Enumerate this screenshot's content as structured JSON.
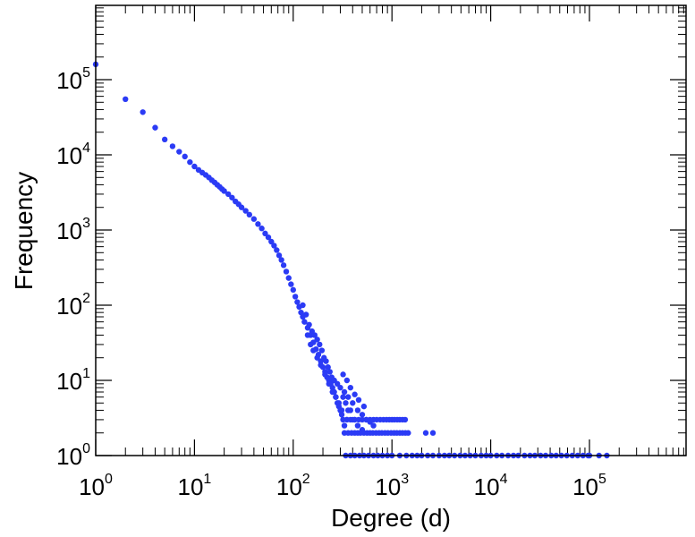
{
  "chart_data": {
    "type": "scatter",
    "title": "",
    "xlabel": "Degree (d)",
    "ylabel": "Frequency",
    "xscale": "log",
    "yscale": "log",
    "xlim": [
      1,
      1000000
    ],
    "ylim": [
      1,
      1000000
    ],
    "grid": false,
    "legend": "none",
    "point_color": "#2b3bf5",
    "x_ticks": [
      {
        "base": "10",
        "exp": "0",
        "value": 1
      },
      {
        "base": "10",
        "exp": "1",
        "value": 10
      },
      {
        "base": "10",
        "exp": "2",
        "value": 100
      },
      {
        "base": "10",
        "exp": "3",
        "value": 1000
      },
      {
        "base": "10",
        "exp": "4",
        "value": 10000
      },
      {
        "base": "10",
        "exp": "5",
        "value": 100000
      }
    ],
    "y_ticks": [
      {
        "base": "10",
        "exp": "0",
        "value": 1
      },
      {
        "base": "10",
        "exp": "1",
        "value": 10
      },
      {
        "base": "10",
        "exp": "2",
        "value": 100
      },
      {
        "base": "10",
        "exp": "3",
        "value": 1000
      },
      {
        "base": "10",
        "exp": "4",
        "value": 10000
      },
      {
        "base": "10",
        "exp": "5",
        "value": 100000
      }
    ],
    "series": [
      {
        "points": [
          [
            1,
            160000
          ],
          [
            2,
            55000
          ],
          [
            3,
            37000
          ],
          [
            4,
            23000
          ],
          [
            5,
            16000
          ],
          [
            6,
            13000
          ],
          [
            7,
            11000
          ],
          [
            8,
            9500
          ],
          [
            9,
            8000
          ],
          [
            10,
            7000
          ],
          [
            11,
            6300
          ],
          [
            12,
            5800
          ],
          [
            13,
            5400
          ],
          [
            14,
            5000
          ],
          [
            15,
            4600
          ],
          [
            16,
            4300
          ],
          [
            17,
            4000
          ],
          [
            18,
            3750
          ],
          [
            19,
            3500
          ],
          [
            20,
            3300
          ],
          [
            22,
            3000
          ],
          [
            24,
            2700
          ],
          [
            26,
            2400
          ],
          [
            28,
            2200
          ],
          [
            30,
            2000
          ],
          [
            33,
            1800
          ],
          [
            36,
            1600
          ],
          [
            40,
            1400
          ],
          [
            44,
            1200
          ],
          [
            48,
            1050
          ],
          [
            52,
            900
          ],
          [
            56,
            800
          ],
          [
            60,
            700
          ],
          [
            64,
            620
          ],
          [
            68,
            540
          ],
          [
            72,
            460
          ],
          [
            76,
            400
          ],
          [
            80,
            340
          ],
          [
            85,
            280
          ],
          [
            90,
            230
          ],
          [
            95,
            190
          ],
          [
            100,
            160
          ],
          [
            105,
            130
          ],
          [
            110,
            110
          ],
          [
            115,
            95
          ],
          [
            120,
            80
          ],
          [
            125,
            70
          ],
          [
            130,
            60
          ],
          [
            140,
            50
          ],
          [
            150,
            40
          ],
          [
            160,
            32
          ],
          [
            170,
            26
          ],
          [
            180,
            22
          ],
          [
            190,
            18
          ],
          [
            200,
            15
          ],
          [
            210,
            13
          ],
          [
            220,
            11
          ],
          [
            230,
            10
          ],
          [
            240,
            9
          ],
          [
            250,
            8
          ],
          [
            260,
            7
          ],
          [
            270,
            6
          ],
          [
            280,
            5
          ],
          [
            290,
            4.5
          ],
          [
            300,
            4
          ],
          [
            310,
            3.5
          ],
          [
            320,
            3
          ],
          [
            330,
            2.5
          ],
          [
            125,
            100
          ],
          [
            135,
            75
          ],
          [
            145,
            55
          ],
          [
            155,
            45
          ],
          [
            165,
            40
          ],
          [
            175,
            35
          ],
          [
            185,
            30
          ],
          [
            195,
            25
          ],
          [
            205,
            20
          ],
          [
            215,
            18
          ],
          [
            225,
            15
          ],
          [
            235,
            13
          ],
          [
            245,
            11
          ],
          [
            260,
            10
          ],
          [
            280,
            9
          ],
          [
            300,
            8
          ],
          [
            320,
            6
          ],
          [
            340,
            5
          ],
          [
            360,
            4
          ],
          [
            380,
            4
          ],
          [
            400,
            3
          ],
          [
            420,
            3
          ],
          [
            450,
            2.5
          ],
          [
            500,
            2.2
          ],
          [
            140,
            40
          ],
          [
            150,
            30
          ],
          [
            160,
            25
          ],
          [
            175,
            20
          ],
          [
            190,
            16
          ],
          [
            210,
            12
          ],
          [
            230,
            9
          ],
          [
            250,
            7
          ],
          [
            270,
            6
          ],
          [
            290,
            5
          ],
          [
            310,
            4
          ],
          [
            350,
            3
          ],
          [
            330,
            7
          ],
          [
            360,
            6
          ],
          [
            400,
            5
          ],
          [
            450,
            4
          ],
          [
            500,
            3.5
          ],
          [
            550,
            3
          ],
          [
            600,
            2.8
          ],
          [
            650,
            2.5
          ],
          [
            320,
            12
          ],
          [
            350,
            10
          ],
          [
            380,
            8
          ],
          [
            420,
            6.5
          ],
          [
            460,
            5.5
          ],
          [
            520,
            4.5
          ],
          [
            320,
            3
          ],
          [
            350,
            3
          ],
          [
            380,
            3
          ],
          [
            420,
            3
          ],
          [
            460,
            3
          ],
          [
            500,
            3
          ],
          [
            550,
            3
          ],
          [
            600,
            3
          ],
          [
            650,
            3
          ],
          [
            700,
            3
          ],
          [
            760,
            3
          ],
          [
            820,
            3
          ],
          [
            880,
            3
          ],
          [
            940,
            3
          ],
          [
            1000,
            3
          ],
          [
            1060,
            3
          ],
          [
            1130,
            3
          ],
          [
            1200,
            3
          ],
          [
            1280,
            3
          ],
          [
            1360,
            3
          ],
          [
            330,
            2
          ],
          [
            360,
            2
          ],
          [
            390,
            2
          ],
          [
            420,
            2
          ],
          [
            450,
            2
          ],
          [
            480,
            2
          ],
          [
            520,
            2
          ],
          [
            560,
            2
          ],
          [
            600,
            2
          ],
          [
            640,
            2
          ],
          [
            690,
            2
          ],
          [
            740,
            2
          ],
          [
            790,
            2
          ],
          [
            850,
            2
          ],
          [
            910,
            2
          ],
          [
            980,
            2
          ],
          [
            1050,
            2
          ],
          [
            1120,
            2
          ],
          [
            1200,
            2
          ],
          [
            1280,
            2
          ],
          [
            1370,
            2
          ],
          [
            1460,
            2
          ],
          [
            2200,
            2
          ],
          [
            2600,
            2
          ],
          [
            340,
            1
          ],
          [
            380,
            1
          ],
          [
            420,
            1
          ],
          [
            470,
            1
          ],
          [
            520,
            1
          ],
          [
            580,
            1
          ],
          [
            650,
            1
          ],
          [
            720,
            1
          ],
          [
            800,
            1
          ],
          [
            900,
            1
          ],
          [
            1000,
            1
          ],
          [
            1200,
            1
          ],
          [
            1400,
            1
          ],
          [
            1600,
            1
          ],
          [
            1800,
            1
          ],
          [
            2000,
            1
          ],
          [
            2300,
            1
          ],
          [
            2600,
            1
          ],
          [
            3000,
            1
          ],
          [
            3400,
            1
          ],
          [
            3800,
            1
          ],
          [
            4300,
            1
          ],
          [
            4900,
            1
          ],
          [
            5500,
            1
          ],
          [
            6200,
            1
          ],
          [
            7000,
            1
          ],
          [
            8000,
            1
          ],
          [
            9000,
            1
          ],
          [
            10000,
            1
          ],
          [
            11500,
            1
          ],
          [
            13000,
            1
          ],
          [
            15000,
            1
          ],
          [
            17000,
            1
          ],
          [
            19000,
            1
          ],
          [
            22000,
            1
          ],
          [
            25000,
            1
          ],
          [
            28000,
            1
          ],
          [
            32000,
            1
          ],
          [
            36000,
            1
          ],
          [
            41000,
            1
          ],
          [
            46000,
            1
          ],
          [
            52000,
            1
          ],
          [
            59000,
            1
          ],
          [
            67000,
            1
          ],
          [
            76000,
            1
          ],
          [
            86000,
            1
          ],
          [
            97000,
            1
          ],
          [
            100000,
            1
          ],
          [
            125000,
            1
          ],
          [
            150000,
            1
          ]
        ]
      }
    ]
  }
}
